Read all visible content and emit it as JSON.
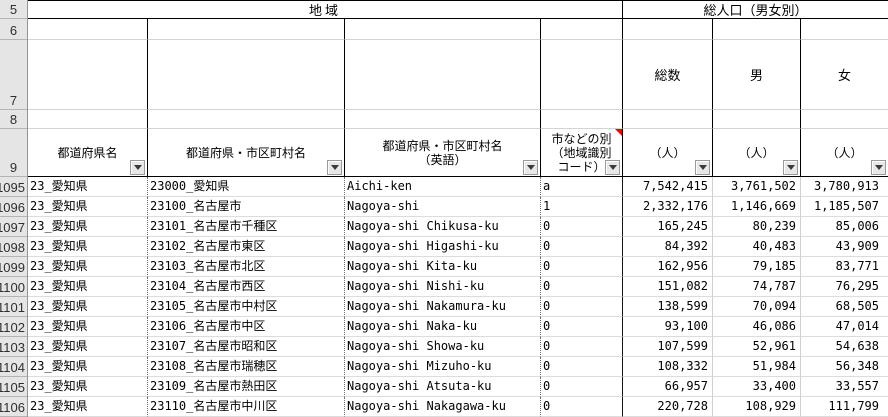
{
  "colors": {
    "comment_marker": "#ff0000",
    "header_border": "#000000",
    "gridline": "#d4d4d4"
  },
  "row_headers": [
    "5",
    "6",
    "7",
    "8",
    "9"
  ],
  "header": {
    "region_group": "地域",
    "population_group": "総人口（男女別）",
    "subcols": [
      "総数",
      "男",
      "女"
    ],
    "columns": [
      {
        "lines": [
          "都道府県名"
        ],
        "filter": true,
        "comment": false
      },
      {
        "lines": [
          "都道府県・市区町村名"
        ],
        "filter": true,
        "comment": false
      },
      {
        "lines": [
          "都道府県・市区町村名",
          "（英語）"
        ],
        "filter": true,
        "comment": false
      },
      {
        "lines": [
          "市などの別",
          "（地域識別",
          "コード）"
        ],
        "filter": true,
        "comment": true
      },
      {
        "lines": [
          "（人）"
        ],
        "filter": true,
        "comment": false
      },
      {
        "lines": [
          "（人）"
        ],
        "filter": true,
        "comment": false
      },
      {
        "lines": [
          "（人）"
        ],
        "filter": true,
        "comment": false
      }
    ]
  },
  "rows": [
    {
      "n": "1095",
      "cells": [
        "23_愛知県",
        "23000_愛知県",
        "Aichi-ken",
        "a",
        "7,542,415",
        "3,761,502",
        "3,780,913"
      ]
    },
    {
      "n": "1096",
      "cells": [
        "23_愛知県",
        "23100_名古屋市",
        "Nagoya-shi",
        "1",
        "2,332,176",
        "1,146,669",
        "1,185,507"
      ]
    },
    {
      "n": "1097",
      "cells": [
        "23_愛知県",
        "23101_名古屋市千種区",
        "Nagoya-shi Chikusa-ku",
        "0",
        "165,245",
        "80,239",
        "85,006"
      ]
    },
    {
      "n": "1098",
      "cells": [
        "23_愛知県",
        "23102_名古屋市東区",
        "Nagoya-shi Higashi-ku",
        "0",
        "84,392",
        "40,483",
        "43,909"
      ]
    },
    {
      "n": "1099",
      "cells": [
        "23_愛知県",
        "23103_名古屋市北区",
        "Nagoya-shi Kita-ku",
        "0",
        "162,956",
        "79,185",
        "83,771"
      ]
    },
    {
      "n": "1100",
      "cells": [
        "23_愛知県",
        "23104_名古屋市西区",
        "Nagoya-shi Nishi-ku",
        "0",
        "151,082",
        "74,787",
        "76,295"
      ]
    },
    {
      "n": "1101",
      "cells": [
        "23_愛知県",
        "23105_名古屋市中村区",
        "Nagoya-shi Nakamura-ku",
        "0",
        "138,599",
        "70,094",
        "68,505"
      ]
    },
    {
      "n": "1102",
      "cells": [
        "23_愛知県",
        "23106_名古屋市中区",
        "Nagoya-shi Naka-ku",
        "0",
        "93,100",
        "46,086",
        "47,014"
      ]
    },
    {
      "n": "1103",
      "cells": [
        "23_愛知県",
        "23107_名古屋市昭和区",
        "Nagoya-shi Showa-ku",
        "0",
        "107,599",
        "52,961",
        "54,638"
      ]
    },
    {
      "n": "1104",
      "cells": [
        "23_愛知県",
        "23108_名古屋市瑞穂区",
        "Nagoya-shi Mizuho-ku",
        "0",
        "108,332",
        "51,984",
        "56,348"
      ]
    },
    {
      "n": "1105",
      "cells": [
        "23_愛知県",
        "23109_名古屋市熱田区",
        "Nagoya-shi Atsuta-ku",
        "0",
        "66,957",
        "33,400",
        "33,557"
      ]
    },
    {
      "n": "1106",
      "cells": [
        "23_愛知県",
        "23110_名古屋市中川区",
        "Nagoya-shi Nakagawa-ku",
        "0",
        "220,728",
        "108,929",
        "111,799"
      ]
    }
  ]
}
